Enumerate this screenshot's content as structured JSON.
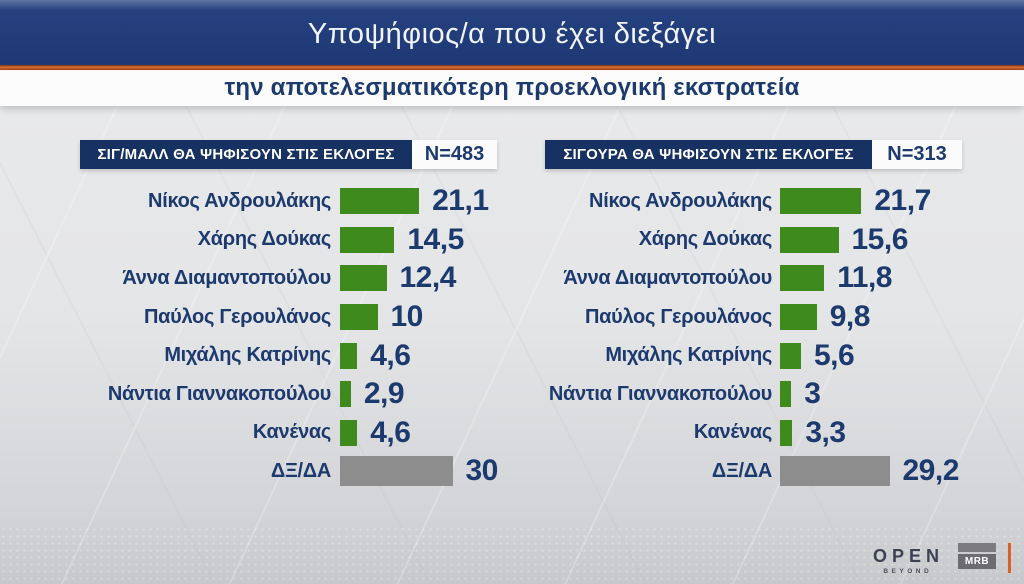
{
  "banner": {
    "title_line1": "Υποψήφιος/α που έχει διεξάγει",
    "title_line2": "την αποτελεσματικότερη προεκλογική εκστρατεία"
  },
  "colors": {
    "banner_navy": "#1d3874",
    "header_box_navy": "#163162",
    "divider_orange": "#c65a24",
    "bar_green": "#3e8a1d",
    "bar_gray": "#8d8d8d",
    "text_navy": "#1d3a6e"
  },
  "chart_data": [
    {
      "type": "bar",
      "orientation": "horizontal",
      "title": "ΣΙΓ/ΜΑΛΛ ΘΑ ΨΗΦΙΣΟΥΝ ΣΤΙΣ ΕΚΛΟΓΕΣ",
      "sample_label": "N=483",
      "categories": [
        "Νίκος Ανδρουλάκης",
        "Χάρης Δούκας",
        "Άννα Διαμαντοπούλου",
        "Παύλος Γερουλάνος",
        "Μιχάλης Κατρίνης",
        "Νάντια Γιαννακοπούλου",
        "Κανένας",
        "ΔΞ/ΔΑ"
      ],
      "values": [
        21.1,
        14.5,
        12.4,
        10,
        4.6,
        2.9,
        4.6,
        30
      ],
      "value_labels": [
        "21,1",
        "14,5",
        "12,4",
        "10",
        "4,6",
        "2,9",
        "4,6",
        "30"
      ],
      "gray_category": "ΔΞ/ΔΑ",
      "xlim": [
        0,
        35
      ],
      "grid": false,
      "legend": false
    },
    {
      "type": "bar",
      "orientation": "horizontal",
      "title": "ΣΙΓΟΥΡΑ ΘΑ ΨΗΦΙΣΟΥΝ ΣΤΙΣ ΕΚΛΟΓΕΣ",
      "sample_label": "N=313",
      "categories": [
        "Νίκος Ανδρουλάκης",
        "Χάρης Δούκας",
        "Άννα Διαμαντοπούλου",
        "Παύλος Γερουλάνος",
        "Μιχάλης Κατρίνης",
        "Νάντια Γιαννακοπούλου",
        "Κανένας",
        "ΔΞ/ΔΑ"
      ],
      "values": [
        21.7,
        15.6,
        11.8,
        9.8,
        5.6,
        3,
        3.3,
        29.2
      ],
      "value_labels": [
        "21,7",
        "15,6",
        "11,8",
        "9,8",
        "5,6",
        "3",
        "3,3",
        "29,2"
      ],
      "gray_category": "ΔΞ/ΔΑ",
      "xlim": [
        0,
        35
      ],
      "grid": false,
      "legend": false
    }
  ],
  "footer": {
    "channel_logo": "OPEN",
    "channel_sub": "BEYOND",
    "agency_logo": "MRB"
  }
}
